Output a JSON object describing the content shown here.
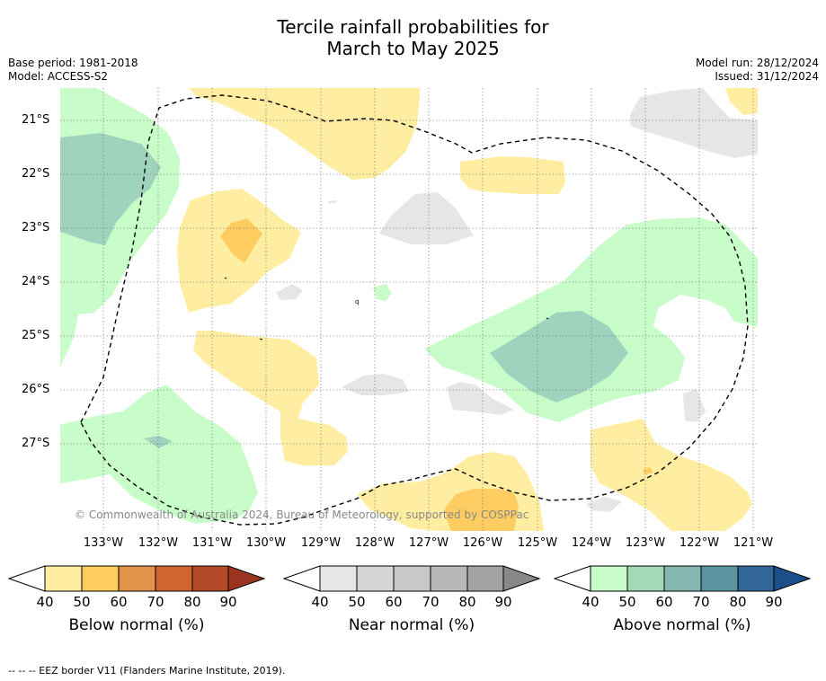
{
  "title_line1": "Tercile rainfall probabilities for",
  "title_line2": "March to May 2025",
  "base_period": "Base period: 1981-2018",
  "model": "Model: ACCESS-S2",
  "model_run": "Model run: 28/12/2024",
  "issued": "Issued: 31/12/2024",
  "copyright": "© Commonwealth of Australia 2024, Bureau of Meteorology, supported by COSPPac",
  "lat_labels": [
    "21°S",
    "22°S",
    "23°S",
    "24°S",
    "25°S",
    "26°S",
    "27°S"
  ],
  "lon_labels": [
    "133°W",
    "132°W",
    "131°W",
    "130°W",
    "129°W",
    "128°W",
    "127°W",
    "126°W",
    "125°W",
    "124°W",
    "123°W",
    "122°W",
    "121°W"
  ],
  "colorbars": [
    {
      "title": "Below normal (%)",
      "ticks": [
        "40",
        "50",
        "60",
        "70",
        "80",
        "90"
      ],
      "colors": [
        "#ffffff",
        "#ffeea2",
        "#fdcd62",
        "#e2954a",
        "#cf6631",
        "#b24a27",
        "#9b3421"
      ]
    },
    {
      "title": "Near normal (%)",
      "ticks": [
        "40",
        "50",
        "60",
        "70",
        "80",
        "90"
      ],
      "colors": [
        "#ffffff",
        "#e6e6e6",
        "#d6d6d6",
        "#c8c8c8",
        "#b7b7b7",
        "#a4a4a4",
        "#888888"
      ]
    },
    {
      "title": "Above normal (%)",
      "ticks": [
        "40",
        "50",
        "60",
        "70",
        "80",
        "90"
      ],
      "colors": [
        "#ffffff",
        "#c8fcc8",
        "#a4d9b8",
        "#85b7b0",
        "#5b95a0",
        "#336799",
        "#1a4f8a"
      ]
    }
  ],
  "footer": "--  --  -- EEZ border V11 (Flanders Marine Institute, 2019)."
}
